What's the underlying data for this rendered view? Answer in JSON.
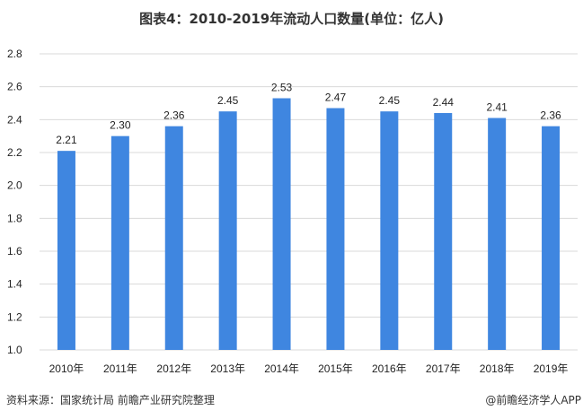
{
  "chart_data": {
    "type": "bar",
    "title": "图表4：2010-2019年流动人口数量(单位：亿人)",
    "categories": [
      "2010年",
      "2011年",
      "2012年",
      "2013年",
      "2014年",
      "2015年",
      "2016年",
      "2017年",
      "2018年",
      "2019年"
    ],
    "values": [
      2.21,
      2.3,
      2.36,
      2.45,
      2.53,
      2.47,
      2.45,
      2.44,
      2.41,
      2.36
    ],
    "data_labels": [
      "2.21",
      "2.30",
      "2.36",
      "2.45",
      "2.53",
      "2.47",
      "2.45",
      "2.44",
      "2.41",
      "2.36"
    ],
    "ylim": [
      1.0,
      2.8
    ],
    "yticks": [
      "1.0",
      "1.2",
      "1.4",
      "1.6",
      "1.8",
      "2.0",
      "2.2",
      "2.4",
      "2.6",
      "2.8"
    ],
    "xlabel": "",
    "ylabel": "",
    "grid": true,
    "legend": "none",
    "bar_color": "#3f86e0",
    "grid_color": "#d9d9d9"
  },
  "footer": {
    "source": "资料来源：国家统计局 前瞻产业研究院整理",
    "credit": "@前瞻经济学人APP"
  }
}
